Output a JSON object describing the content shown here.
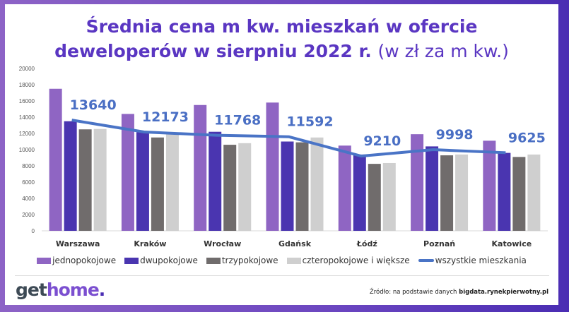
{
  "title": {
    "line1": "Średnia cena m kw. mieszkań w ofercie",
    "line2": "deweloperów w sierpniu 2022 r.",
    "unit": "(w zł za m kw.)"
  },
  "colors": {
    "jednopokojowe": "#8f65c3",
    "dwupokojowe": "#4a35b0",
    "trzypokojowe": "#706c6c",
    "czteropokojowe": "#cfcfcf",
    "line": "#4a74c6",
    "title": "#5a36c2"
  },
  "chart_data": {
    "type": "bar",
    "categories": [
      "Warszawa",
      "Kraków",
      "Wrocław",
      "Gdańsk",
      "Łódź",
      "Poznań",
      "Katowice"
    ],
    "ylim": [
      0,
      20000
    ],
    "yticks": [
      "0",
      "2000",
      "4000",
      "6000",
      "8000",
      "10000",
      "12000",
      "14000",
      "16000",
      "18000",
      "20000"
    ],
    "grid": false,
    "legend": "bottom",
    "series": [
      {
        "name": "jednopokojowe",
        "values": [
          17500,
          14400,
          15500,
          15800,
          10500,
          11900,
          11100
        ]
      },
      {
        "name": "dwupokojowe",
        "values": [
          13500,
          12150,
          12200,
          11000,
          9400,
          10400,
          9600
        ]
      },
      {
        "name": "trzypokojowe",
        "values": [
          12500,
          11500,
          10600,
          10900,
          8250,
          9300,
          9100
        ]
      },
      {
        "name": "czteropokojowe i większe",
        "values": [
          12550,
          11900,
          10800,
          11500,
          8350,
          9400,
          9400
        ]
      }
    ],
    "line": {
      "name": "wszystkie mieszkania",
      "type": "line",
      "values": [
        13640,
        12173,
        11768,
        11592,
        9210,
        9998,
        9625
      ],
      "labels": [
        "13640",
        "12173",
        "11768",
        "11592",
        "9210",
        "9998",
        "9625"
      ]
    }
  },
  "footer": {
    "logo": {
      "a": "get",
      "b": "home",
      "c": "."
    },
    "source_prefix": "Źródło: na podstawie danych ",
    "source_bold": "bigdata.rynekpierwotny.pl"
  }
}
